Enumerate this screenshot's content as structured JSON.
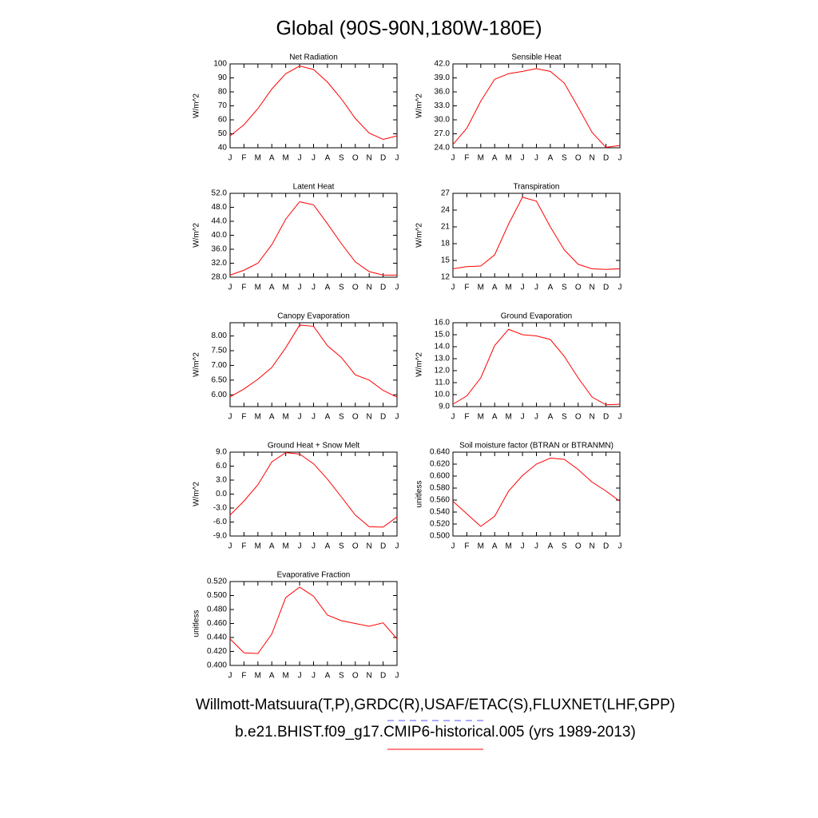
{
  "title": "Global (90S-90N,180W-180E)",
  "legend": [
    {
      "name": "Willmott-Matsuura(T,P),GRDC(R),USAF/ETAC(S),FLUXNET(LHF,GPP)",
      "color": "#5555ff",
      "dash": "dashed"
    },
    {
      "name": "b.e21.BHIST.f09_g17.CMIP6-historical.005 (yrs 1989-2013)",
      "color": "#ff0000",
      "dash": "solid"
    }
  ],
  "chart_data": [
    {
      "type": "line",
      "title": "Net Radiation",
      "ylabel": "W/m^2",
      "color": "#ff0000",
      "categories": [
        "J",
        "F",
        "M",
        "A",
        "M",
        "J",
        "J",
        "A",
        "S",
        "O",
        "N",
        "D",
        "J"
      ],
      "values": [
        48.5,
        56.5,
        68,
        82,
        93,
        98.5,
        96,
        87,
        75,
        61,
        50.5,
        46,
        48.5
      ],
      "ylim": [
        40,
        100
      ],
      "yticks": [
        40,
        50,
        60,
        70,
        80,
        90,
        100
      ]
    },
    {
      "type": "line",
      "title": "Sensible Heat",
      "ylabel": "W/m^2",
      "color": "#ff0000",
      "categories": [
        "J",
        "F",
        "M",
        "A",
        "M",
        "J",
        "J",
        "A",
        "S",
        "O",
        "N",
        "D",
        "J"
      ],
      "values": [
        24.7,
        28.2,
        34.0,
        38.7,
        39.9,
        40.4,
        41.0,
        40.4,
        37.9,
        32.7,
        27.3,
        24.1,
        24.5
      ],
      "ylim": [
        24,
        42
      ],
      "yticks": [
        {
          "value": 24,
          "label": "24.0"
        },
        {
          "value": 27,
          "label": "27.0"
        },
        {
          "value": 30,
          "label": "30.0"
        },
        {
          "value": 33,
          "label": "33.0"
        },
        {
          "value": 36,
          "label": "36.0"
        },
        {
          "value": 39,
          "label": "39.0"
        },
        {
          "value": 42,
          "label": "42.0"
        }
      ]
    },
    {
      "type": "line",
      "title": "Latent Heat",
      "ylabel": "W/m^2",
      "color": "#ff0000",
      "categories": [
        "J",
        "F",
        "M",
        "A",
        "M",
        "J",
        "J",
        "A",
        "S",
        "O",
        "N",
        "D",
        "J"
      ],
      "values": [
        28.6,
        30.0,
        32.0,
        37.3,
        44.6,
        49.6,
        48.7,
        43.3,
        37.6,
        32.4,
        29.6,
        28.6,
        28.6
      ],
      "ylim": [
        28,
        52
      ],
      "yticks": [
        {
          "value": 28,
          "label": "28.0"
        },
        {
          "value": 32,
          "label": "32.0"
        },
        {
          "value": 36,
          "label": "36.0"
        },
        {
          "value": 40,
          "label": "40.0"
        },
        {
          "value": 44,
          "label": "44.0"
        },
        {
          "value": 48,
          "label": "48.0"
        },
        {
          "value": 52,
          "label": "52.0"
        }
      ]
    },
    {
      "type": "line",
      "title": "Transpiration",
      "ylabel": "W/m^2",
      "color": "#ff0000",
      "categories": [
        "J",
        "F",
        "M",
        "A",
        "M",
        "J",
        "J",
        "A",
        "S",
        "O",
        "N",
        "D",
        "J"
      ],
      "values": [
        13.5,
        13.9,
        14.0,
        16.0,
        21.5,
        26.3,
        25.6,
        21.0,
        16.9,
        14.3,
        13.5,
        13.4,
        13.5
      ],
      "ylim": [
        12,
        27
      ],
      "yticks": [
        12,
        15,
        18,
        21,
        24,
        27
      ]
    },
    {
      "type": "line",
      "title": "Canopy Evaporation",
      "ylabel": "W/m^2",
      "color": "#ff0000",
      "categories": [
        "J",
        "F",
        "M",
        "A",
        "M",
        "J",
        "J",
        "A",
        "S",
        "O",
        "N",
        "D",
        "J"
      ],
      "values": [
        5.93,
        6.2,
        6.53,
        6.93,
        7.6,
        8.37,
        8.33,
        7.67,
        7.27,
        6.68,
        6.5,
        6.15,
        5.92
      ],
      "ylim": [
        5.6,
        8.45
      ],
      "yticks": [
        {
          "value": 6,
          "label": "6.00"
        },
        {
          "value": 6.5,
          "label": "6.50"
        },
        {
          "value": 7,
          "label": "7.00"
        },
        {
          "value": 7.5,
          "label": "7.50"
        },
        {
          "value": 8,
          "label": "8.00"
        }
      ]
    },
    {
      "type": "line",
      "title": "Ground Evaporation",
      "ylabel": "W/m^2",
      "color": "#ff0000",
      "categories": [
        "J",
        "F",
        "M",
        "A",
        "M",
        "J",
        "J",
        "A",
        "S",
        "O",
        "N",
        "D",
        "J"
      ],
      "values": [
        9.2,
        9.9,
        11.4,
        14.1,
        15.45,
        15.0,
        14.9,
        14.6,
        13.2,
        11.4,
        9.8,
        9.15,
        9.2
      ],
      "ylim": [
        9,
        16
      ],
      "yticks": [
        {
          "value": 9,
          "label": "9.0"
        },
        {
          "value": 10,
          "label": "10.0"
        },
        {
          "value": 11,
          "label": "11.0"
        },
        {
          "value": 12,
          "label": "12.0"
        },
        {
          "value": 13,
          "label": "13.0"
        },
        {
          "value": 14,
          "label": "14.0"
        },
        {
          "value": 15,
          "label": "15.0"
        },
        {
          "value": 16,
          "label": "16.0"
        }
      ]
    },
    {
      "type": "line",
      "title": "Ground Heat + Snow Melt",
      "ylabel": "W/m^2",
      "color": "#ff0000",
      "categories": [
        "J",
        "F",
        "M",
        "A",
        "M",
        "J",
        "J",
        "A",
        "S",
        "O",
        "N",
        "D",
        "J"
      ],
      "values": [
        -4.5,
        -1.5,
        2.0,
        6.9,
        8.9,
        8.6,
        6.5,
        3.2,
        -0.6,
        -4.5,
        -7.0,
        -7.1,
        -4.9
      ],
      "ylim": [
        -9,
        9
      ],
      "yticks": [
        {
          "value": -9,
          "label": "-9.0"
        },
        {
          "value": -6,
          "label": "-6.0"
        },
        {
          "value": -3,
          "label": "-3.0"
        },
        {
          "value": 0,
          "label": "0.0"
        },
        {
          "value": 3,
          "label": "3.0"
        },
        {
          "value": 6,
          "label": "6.0"
        },
        {
          "value": 9,
          "label": "9.0"
        }
      ]
    },
    {
      "type": "line",
      "title": "Soil moisture factor (BTRAN or BTRANMN)",
      "ylabel": "unitless",
      "color": "#ff0000",
      "categories": [
        "J",
        "F",
        "M",
        "A",
        "M",
        "J",
        "J",
        "A",
        "S",
        "O",
        "N",
        "D",
        "J"
      ],
      "values": [
        0.558,
        0.537,
        0.516,
        0.533,
        0.575,
        0.601,
        0.62,
        0.63,
        0.628,
        0.611,
        0.59,
        0.575,
        0.558
      ],
      "ylim": [
        0.5,
        0.64
      ],
      "yticks": [
        {
          "value": 0.5,
          "label": "0.500"
        },
        {
          "value": 0.52,
          "label": "0.520"
        },
        {
          "value": 0.54,
          "label": "0.540"
        },
        {
          "value": 0.56,
          "label": "0.560"
        },
        {
          "value": 0.58,
          "label": "0.580"
        },
        {
          "value": 0.6,
          "label": "0.600"
        },
        {
          "value": 0.62,
          "label": "0.620"
        },
        {
          "value": 0.64,
          "label": "0.640"
        }
      ]
    },
    {
      "type": "line",
      "title": "Evaporative Fraction",
      "ylabel": "unitless",
      "color": "#ff0000",
      "categories": [
        "J",
        "F",
        "M",
        "A",
        "M",
        "J",
        "J",
        "A",
        "S",
        "O",
        "N",
        "D",
        "J"
      ],
      "values": [
        0.438,
        0.418,
        0.417,
        0.445,
        0.497,
        0.512,
        0.499,
        0.472,
        0.464,
        0.46,
        0.456,
        0.461,
        0.438
      ],
      "ylim": [
        0.4,
        0.52
      ],
      "yticks": [
        {
          "value": 0.4,
          "label": "0.400"
        },
        {
          "value": 0.42,
          "label": "0.420"
        },
        {
          "value": 0.44,
          "label": "0.440"
        },
        {
          "value": 0.46,
          "label": "0.460"
        },
        {
          "value": 0.48,
          "label": "0.480"
        },
        {
          "value": 0.5,
          "label": "0.500"
        },
        {
          "value": 0.52,
          "label": "0.520"
        }
      ]
    }
  ]
}
